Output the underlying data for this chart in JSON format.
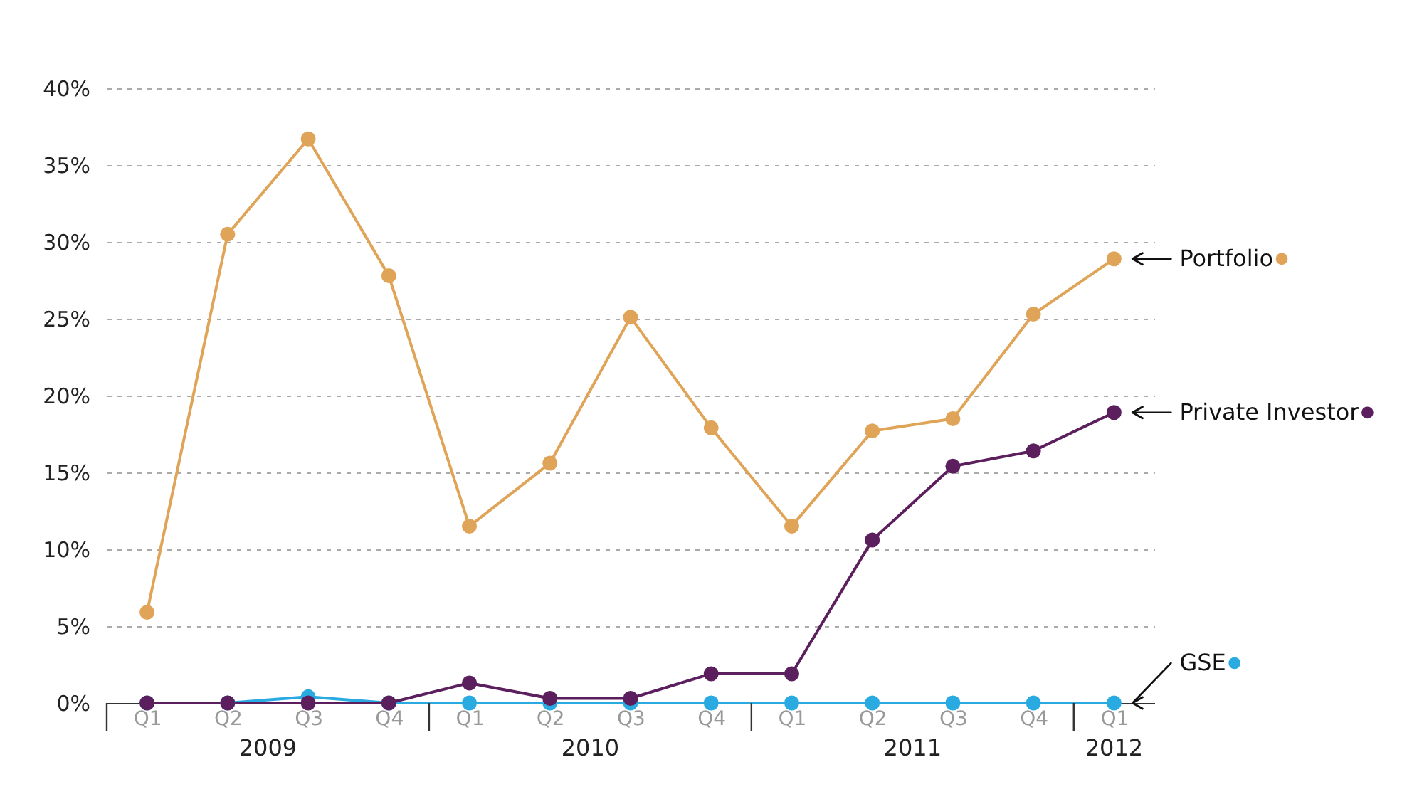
{
  "chart_data": {
    "type": "line",
    "categories": [
      "Q1",
      "Q2",
      "Q3",
      "Q4",
      "Q1",
      "Q2",
      "Q3",
      "Q4",
      "Q1",
      "Q2",
      "Q3",
      "Q4",
      "Q1"
    ],
    "series": [
      {
        "name": "Portfolio",
        "color": "#e0a458",
        "values": [
          5.9,
          30.5,
          36.7,
          27.8,
          11.5,
          15.6,
          25.1,
          17.9,
          11.5,
          17.7,
          18.5,
          25.3,
          28.9
        ]
      },
      {
        "name": "Private Investor",
        "color": "#5c1f5e",
        "values": [
          0,
          0,
          0,
          0,
          1.3,
          0.3,
          0.3,
          1.9,
          1.9,
          10.6,
          15.4,
          16.4,
          18.9
        ]
      },
      {
        "name": "GSE",
        "color": "#29abe2",
        "values": [
          0,
          0,
          0.4,
          0,
          0,
          0,
          0,
          0,
          0,
          0,
          0,
          0,
          0
        ]
      }
    ],
    "annotations": [
      "2009",
      "2010",
      "2011",
      "2012"
    ],
    "ylim": [
      0,
      40
    ],
    "yticks": [
      {
        "value": 0,
        "label": "0%"
      },
      {
        "value": 5,
        "label": "5%"
      },
      {
        "value": 10,
        "label": "10%"
      },
      {
        "value": 15,
        "label": "15%"
      },
      {
        "value": 20,
        "label": "20%"
      },
      {
        "value": 25,
        "label": "25%"
      },
      {
        "value": 30,
        "label": "30%"
      },
      {
        "value": 35,
        "label": "35%"
      },
      {
        "value": 40,
        "label": "40%"
      }
    ],
    "grid": "y",
    "marker": "circle",
    "line_style": "solid",
    "legend": "right"
  }
}
